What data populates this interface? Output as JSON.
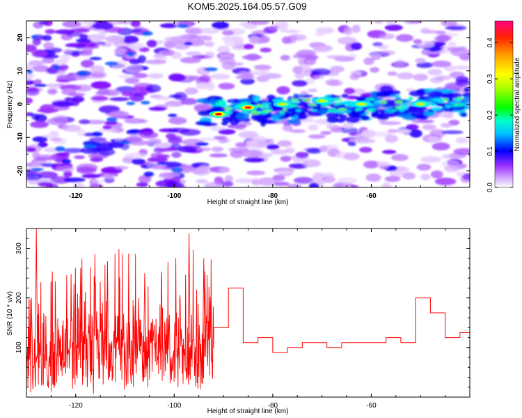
{
  "title": "KOM5.2025.164.05.57.G09",
  "chart_data": [
    {
      "type": "heatmap",
      "xlabel": "Height of straight line (km)",
      "ylabel": "Frequency (Hz)",
      "xlim": [
        -130,
        -40
      ],
      "ylim": [
        -25,
        25
      ],
      "xticks": [
        -120,
        -100,
        -80,
        -60
      ],
      "yticks": [
        -20,
        -10,
        0,
        10,
        20
      ],
      "colorbar": {
        "label": "Normalized spectral amplitude",
        "range": [
          0,
          0.46
        ],
        "ticks": [
          0.0,
          0.1,
          0.2,
          0.3,
          0.4
        ],
        "colors": [
          "#ffffff",
          "#cc99ff",
          "#7f00ff",
          "#0000ff",
          "#00bfff",
          "#00ffbf",
          "#00ff00",
          "#bfff00",
          "#ffff00",
          "#ff8000",
          "#ff0000",
          "#ff0080"
        ]
      },
      "features": [
        {
          "x": -91,
          "y": -3,
          "value": 0.46
        },
        {
          "x": -85,
          "y": -1,
          "value": 0.4
        },
        {
          "x": -78,
          "y": 0,
          "value": 0.22
        },
        {
          "x": -70,
          "y": 1,
          "value": 0.2
        },
        {
          "x": -62,
          "y": 0,
          "value": 0.18
        },
        {
          "x": -50,
          "y": 0,
          "value": 0.18
        }
      ]
    },
    {
      "type": "line",
      "xlabel": "Height of straight line (km)",
      "ylabel": "SNR (10 * v/v)",
      "xlim": [
        -130,
        -40
      ],
      "ylim": [
        0,
        340
      ],
      "xticks": [
        -120,
        -100,
        -80,
        -60
      ],
      "yticks": [
        100,
        200,
        300
      ],
      "color": "#ff0000",
      "steps": [
        [
          -92,
          140
        ],
        [
          -89,
          220
        ],
        [
          -86,
          110
        ],
        [
          -83,
          120
        ],
        [
          -80,
          90
        ],
        [
          -77,
          100
        ],
        [
          -74,
          110
        ],
        [
          -69,
          100
        ],
        [
          -66,
          110
        ],
        [
          -57,
          120
        ],
        [
          -54,
          110
        ],
        [
          -51,
          200
        ],
        [
          -48,
          170
        ],
        [
          -45,
          120
        ],
        [
          -42,
          130
        ],
        [
          -40,
          130
        ]
      ],
      "noise_region": {
        "x_start": -130,
        "x_end": -92,
        "mean": 100,
        "typical_min": 20,
        "typical_max": 240
      },
      "peaks": [
        {
          "x": -128,
          "y": 340
        },
        {
          "x": -97,
          "y": 330
        },
        {
          "x": -94,
          "y": 280
        },
        {
          "x": -119,
          "y": 260
        },
        {
          "x": -106,
          "y": 250
        }
      ]
    }
  ]
}
